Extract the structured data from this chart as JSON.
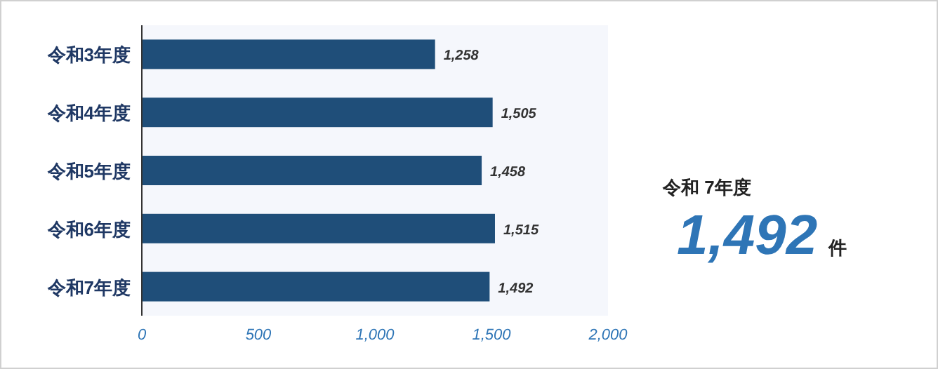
{
  "chart_data": [
    {
      "type": "bar",
      "orientation": "horizontal",
      "categories": [
        "令和3年度",
        "令和4年度",
        "令和5年度",
        "令和6年度",
        "令和7年度"
      ],
      "values": [
        1258,
        1505,
        1458,
        1515,
        1492
      ],
      "color": "#1f4e79",
      "xlim": [
        0,
        2000
      ],
      "xticks": [
        {
          "value": 0,
          "label": "0"
        },
        {
          "value": 500,
          "label": "500"
        },
        {
          "value": 1000,
          "label": "1,000"
        },
        {
          "value": 1500,
          "label": "1,500"
        },
        {
          "value": 2000,
          "label": "2,000"
        }
      ],
      "value_labels": [
        "1,258",
        "1,505",
        "1,458",
        "1,515",
        "1,492"
      ],
      "grid": false
    },
    {
      "type": "other",
      "title": "令和 7年度",
      "annotations": [
        "1,492",
        "件"
      ]
    }
  ]
}
